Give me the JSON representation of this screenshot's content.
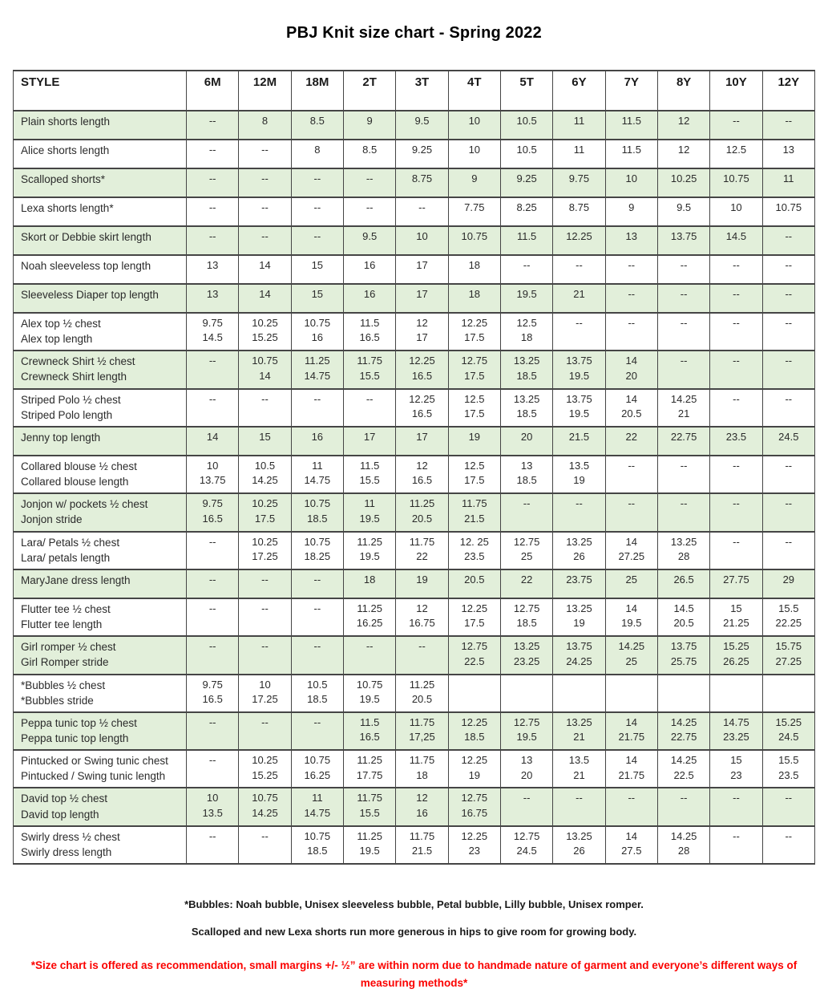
{
  "title": "PBJ Knit size chart - Spring 2022",
  "table": {
    "header": [
      "STYLE",
      "6M",
      "12M",
      "18M",
      "2T",
      "3T",
      "4T",
      "5T",
      "6Y",
      "7Y",
      "8Y",
      "10Y",
      "12Y"
    ],
    "rows": [
      {
        "style": [
          "Plain shorts length"
        ],
        "values": [
          [
            "--"
          ],
          [
            "8"
          ],
          [
            "8.5"
          ],
          [
            "9"
          ],
          [
            "9.5"
          ],
          [
            "10"
          ],
          [
            "10.5"
          ],
          [
            "11"
          ],
          [
            "11.5"
          ],
          [
            "12"
          ],
          [
            "--"
          ],
          [
            "--"
          ]
        ]
      },
      {
        "style": [
          "Alice shorts length"
        ],
        "values": [
          [
            "--"
          ],
          [
            "--"
          ],
          [
            "8"
          ],
          [
            "8.5"
          ],
          [
            "9.25"
          ],
          [
            "10"
          ],
          [
            "10.5"
          ],
          [
            "11"
          ],
          [
            "11.5"
          ],
          [
            "12"
          ],
          [
            "12.5"
          ],
          [
            "13"
          ]
        ]
      },
      {
        "style": [
          "Scalloped shorts*"
        ],
        "values": [
          [
            "--"
          ],
          [
            "--"
          ],
          [
            "--"
          ],
          [
            "--"
          ],
          [
            "8.75"
          ],
          [
            "9"
          ],
          [
            "9.25"
          ],
          [
            "9.75"
          ],
          [
            "10"
          ],
          [
            "10.25"
          ],
          [
            "10.75"
          ],
          [
            "11"
          ]
        ]
      },
      {
        "style": [
          "Lexa shorts length*"
        ],
        "values": [
          [
            "--"
          ],
          [
            "--"
          ],
          [
            "--"
          ],
          [
            "--"
          ],
          [
            "--"
          ],
          [
            "7.75"
          ],
          [
            "8.25"
          ],
          [
            "8.75"
          ],
          [
            "9"
          ],
          [
            "9.5"
          ],
          [
            "10"
          ],
          [
            "10.75"
          ]
        ]
      },
      {
        "style": [
          "Skort or Debbie skirt length"
        ],
        "values": [
          [
            "--"
          ],
          [
            "--"
          ],
          [
            "--"
          ],
          [
            "9.5"
          ],
          [
            "10"
          ],
          [
            "10.75"
          ],
          [
            "11.5"
          ],
          [
            "12.25"
          ],
          [
            "13"
          ],
          [
            "13.75"
          ],
          [
            "14.5"
          ],
          [
            "--"
          ]
        ]
      },
      {
        "style": [
          "Noah sleeveless top length"
        ],
        "values": [
          [
            "13"
          ],
          [
            "14"
          ],
          [
            "15"
          ],
          [
            "16"
          ],
          [
            "17"
          ],
          [
            "18"
          ],
          [
            "--"
          ],
          [
            "--"
          ],
          [
            "--"
          ],
          [
            "--"
          ],
          [
            "--"
          ],
          [
            "--"
          ]
        ]
      },
      {
        "style": [
          "Sleeveless Diaper top length"
        ],
        "values": [
          [
            "13"
          ],
          [
            "14"
          ],
          [
            "15"
          ],
          [
            "16"
          ],
          [
            "17"
          ],
          [
            "18"
          ],
          [
            "19.5"
          ],
          [
            "21"
          ],
          [
            "--"
          ],
          [
            "--"
          ],
          [
            "--"
          ],
          [
            "--"
          ]
        ]
      },
      {
        "style": [
          "Alex top ½ chest",
          "Alex top length"
        ],
        "values": [
          [
            "9.75",
            "14.5"
          ],
          [
            "10.25",
            "15.25"
          ],
          [
            "10.75",
            "16"
          ],
          [
            "11.5",
            "16.5"
          ],
          [
            "12",
            "17"
          ],
          [
            "12.25",
            "17.5"
          ],
          [
            "12.5",
            "18"
          ],
          [
            "--"
          ],
          [
            "--"
          ],
          [
            "--"
          ],
          [
            "--"
          ],
          [
            "--"
          ]
        ]
      },
      {
        "style": [
          "Crewneck Shirt ½ chest",
          "Crewneck Shirt length"
        ],
        "values": [
          [
            "--"
          ],
          [
            "10.75",
            "14"
          ],
          [
            "11.25",
            "14.75"
          ],
          [
            "11.75",
            "15.5"
          ],
          [
            "12.25",
            "16.5"
          ],
          [
            "12.75",
            "17.5"
          ],
          [
            "13.25",
            "18.5"
          ],
          [
            "13.75",
            "19.5"
          ],
          [
            "14",
            "20"
          ],
          [
            "--"
          ],
          [
            "--"
          ],
          [
            "--"
          ]
        ]
      },
      {
        "style": [
          "Striped Polo ½ chest",
          "Striped Polo length"
        ],
        "values": [
          [
            "--"
          ],
          [
            "--"
          ],
          [
            "--"
          ],
          [
            "--"
          ],
          [
            "12.25",
            "16.5"
          ],
          [
            "12.5",
            "17.5"
          ],
          [
            "13.25",
            "18.5"
          ],
          [
            "13.75",
            "19.5"
          ],
          [
            "14",
            "20.5"
          ],
          [
            "14.25",
            "21"
          ],
          [
            "--"
          ],
          [
            "--"
          ]
        ]
      },
      {
        "style": [
          "Jenny top length"
        ],
        "values": [
          [
            "14"
          ],
          [
            "15"
          ],
          [
            "16"
          ],
          [
            "17"
          ],
          [
            "17"
          ],
          [
            "19"
          ],
          [
            "20"
          ],
          [
            "21.5"
          ],
          [
            "22"
          ],
          [
            "22.75"
          ],
          [
            "23.5"
          ],
          [
            "24.5"
          ]
        ]
      },
      {
        "style": [
          "Collared blouse ½ chest",
          "Collared blouse length"
        ],
        "values": [
          [
            "10",
            "13.75"
          ],
          [
            "10.5",
            "14.25"
          ],
          [
            "11",
            "14.75"
          ],
          [
            "11.5",
            "15.5"
          ],
          [
            "12",
            "16.5"
          ],
          [
            "12.5",
            "17.5"
          ],
          [
            "13",
            "18.5"
          ],
          [
            "13.5",
            "19"
          ],
          [
            "--"
          ],
          [
            "--"
          ],
          [
            "--"
          ],
          [
            "--"
          ]
        ]
      },
      {
        "style": [
          "Jonjon w/ pockets ½ chest",
          "Jonjon stride"
        ],
        "values": [
          [
            "9.75",
            "16.5"
          ],
          [
            "10.25",
            "17.5"
          ],
          [
            "10.75",
            "18.5"
          ],
          [
            "11",
            "19.5"
          ],
          [
            "11.25",
            "20.5"
          ],
          [
            "11.75",
            "21.5"
          ],
          [
            "--"
          ],
          [
            "--"
          ],
          [
            "--"
          ],
          [
            "--"
          ],
          [
            "--"
          ],
          [
            "--"
          ]
        ]
      },
      {
        "style": [
          "Lara/ Petals ½ chest",
          "Lara/ petals length"
        ],
        "values": [
          [
            "--"
          ],
          [
            "10.25",
            "17.25"
          ],
          [
            "10.75",
            "18.25"
          ],
          [
            "11.25",
            "19.5"
          ],
          [
            "11.75",
            "22"
          ],
          [
            "12. 25",
            "23.5"
          ],
          [
            "12.75",
            "25"
          ],
          [
            "13.25",
            "26"
          ],
          [
            "14",
            "27.25"
          ],
          [
            "13.25",
            "28"
          ],
          [
            "--"
          ],
          [
            "--"
          ]
        ]
      },
      {
        "style": [
          "MaryJane dress length"
        ],
        "values": [
          [
            "--"
          ],
          [
            "--"
          ],
          [
            "--"
          ],
          [
            "18"
          ],
          [
            "19"
          ],
          [
            "20.5"
          ],
          [
            "22"
          ],
          [
            "23.75"
          ],
          [
            "25"
          ],
          [
            "26.5"
          ],
          [
            "27.75"
          ],
          [
            "29"
          ]
        ]
      },
      {
        "style": [
          "Flutter tee ½ chest",
          "Flutter tee length"
        ],
        "values": [
          [
            "--"
          ],
          [
            "--"
          ],
          [
            "--"
          ],
          [
            "11.25",
            "16.25"
          ],
          [
            "12",
            "16.75"
          ],
          [
            "12.25",
            "17.5"
          ],
          [
            "12.75",
            "18.5"
          ],
          [
            "13.25",
            "19"
          ],
          [
            "14",
            "19.5"
          ],
          [
            "14.5",
            "20.5"
          ],
          [
            "15",
            "21.25"
          ],
          [
            "15.5",
            "22.25"
          ]
        ]
      },
      {
        "style": [
          "Girl romper ½ chest",
          "Girl Romper stride"
        ],
        "values": [
          [
            "--"
          ],
          [
            "--"
          ],
          [
            "--"
          ],
          [
            "--"
          ],
          [
            "--"
          ],
          [
            "12.75",
            "22.5"
          ],
          [
            "13.25",
            "23.25"
          ],
          [
            "13.75",
            "24.25"
          ],
          [
            "14.25",
            "25"
          ],
          [
            "13.75",
            "25.75"
          ],
          [
            "15.25",
            "26.25"
          ],
          [
            "15.75",
            "27.25"
          ]
        ]
      },
      {
        "style": [
          "*Bubbles ½ chest",
          "*Bubbles stride"
        ],
        "values": [
          [
            "9.75",
            "16.5"
          ],
          [
            "10",
            "17.25"
          ],
          [
            "10.5",
            "18.5"
          ],
          [
            "10.75",
            "19.5"
          ],
          [
            "11.25",
            "20.5"
          ],
          [],
          [],
          [],
          [],
          [],
          [],
          []
        ]
      },
      {
        "style": [
          "Peppa tunic top ½ chest",
          "Peppa tunic top length"
        ],
        "values": [
          [
            "--"
          ],
          [
            "--"
          ],
          [
            "--"
          ],
          [
            "11.5",
            "16.5"
          ],
          [
            "11.75",
            "17,25"
          ],
          [
            "12.25",
            "18.5"
          ],
          [
            "12.75",
            "19.5"
          ],
          [
            "13.25",
            "21"
          ],
          [
            "14",
            "21.75"
          ],
          [
            "14.25",
            "22.75"
          ],
          [
            "14.75",
            "23.25"
          ],
          [
            "15.25",
            "24.5"
          ]
        ]
      },
      {
        "style": [
          "Pintucked or Swing tunic chest",
          "Pintucked / Swing tunic length"
        ],
        "values": [
          [
            "--"
          ],
          [
            "10.25",
            "15.25"
          ],
          [
            "10.75",
            "16.25"
          ],
          [
            "11.25",
            "17.75"
          ],
          [
            "11.75",
            "18"
          ],
          [
            "12.25",
            "19"
          ],
          [
            "13",
            "20"
          ],
          [
            "13.5",
            "21"
          ],
          [
            "14",
            "21.75"
          ],
          [
            "14.25",
            "22.5"
          ],
          [
            "15",
            "23"
          ],
          [
            "15.5",
            "23.5"
          ]
        ]
      },
      {
        "style": [
          "David top ½ chest",
          "David top length"
        ],
        "values": [
          [
            "10",
            "13.5"
          ],
          [
            "10.75",
            "14.25"
          ],
          [
            "11",
            "14.75"
          ],
          [
            "11.75",
            "15.5"
          ],
          [
            "12",
            "16"
          ],
          [
            "12.75",
            "16.75"
          ],
          [
            "--"
          ],
          [
            "--"
          ],
          [
            "--"
          ],
          [
            "--"
          ],
          [
            "--"
          ],
          [
            "--"
          ]
        ]
      },
      {
        "style": [
          "Swirly dress ½ chest",
          "Swirly dress length"
        ],
        "values": [
          [
            "--"
          ],
          [
            "--"
          ],
          [
            "10.75",
            "18.5"
          ],
          [
            "11.25",
            "19.5"
          ],
          [
            "11.75",
            "21.5"
          ],
          [
            "12.25",
            "23"
          ],
          [
            "12.75",
            "24.5"
          ],
          [
            "13.25",
            "26"
          ],
          [
            "14",
            "27.5"
          ],
          [
            "14.25",
            "28"
          ],
          [
            "--"
          ],
          [
            "--"
          ]
        ]
      }
    ]
  },
  "footnotes": {
    "bubbles": "*Bubbles: Noah bubble, Unisex sleeveless bubble, Petal bubble, Lilly bubble, Unisex romper.",
    "shorts": "Scalloped and new Lexa shorts run more generous in hips to give room for growing body.",
    "disclaimer": "*Size chart is offered as recommendation, small margins +/- ½” are within norm due to handmade nature of garment and everyone’s different ways of measuring methods*"
  },
  "colors": {
    "shaded_row": "#e2efda",
    "border": "#454545",
    "disclaimer_red": "#fb0200"
  }
}
